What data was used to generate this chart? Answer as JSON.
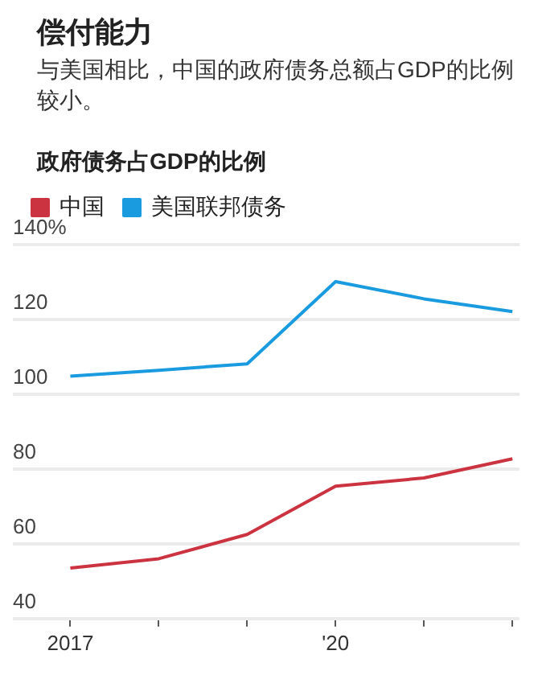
{
  "chart_data": {
    "type": "line",
    "title": "偿付能力",
    "subtitle": "与美国相比，中国的政府债务总额占GDP的比例较小。",
    "ylabel": "政府债务占GDP的比例",
    "x": [
      2017,
      2018,
      2019,
      2020,
      2021,
      2022
    ],
    "series": [
      {
        "name": "中国",
        "color": "#cc3340",
        "values": [
          53.5,
          56,
          62.5,
          75.4,
          77.6,
          82.7
        ]
      },
      {
        "name": "美国联邦债务",
        "color": "#1a9be0",
        "values": [
          104.8,
          106.4,
          108.1,
          130.1,
          125.5,
          122.1
        ]
      }
    ],
    "xlim": [
      2016.35,
      2022.08
    ],
    "xticks": [
      {
        "value": 2017,
        "label": "2017"
      },
      {
        "value": 2018,
        "label": null
      },
      {
        "value": 2019,
        "label": null
      },
      {
        "value": 2020,
        "label": "'20"
      },
      {
        "value": 2021,
        "label": null
      },
      {
        "value": 2022,
        "label": null
      }
    ],
    "ylim": [
      40,
      140
    ],
    "yticks": [
      40,
      60,
      80,
      100,
      120,
      {
        "value": 140,
        "label": "140%"
      }
    ],
    "grid": "y",
    "legend": "top left",
    "marker": "none",
    "line_style": "solid"
  }
}
